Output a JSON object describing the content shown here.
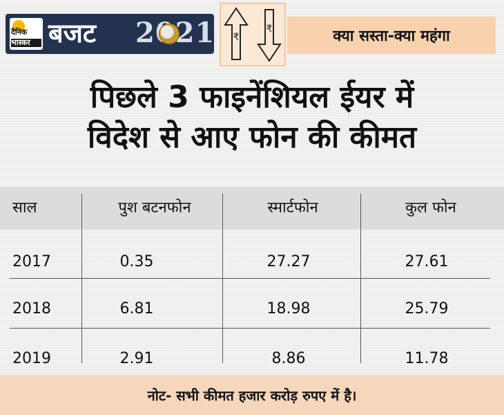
{
  "header": {
    "brand_logo_lines": [
      "दैनिक",
      "भास्कर"
    ],
    "budget_word": "बजट",
    "year": "2021",
    "tagline": "क्या सस्ता-क्या महंगा",
    "colors": {
      "badge": "#23334f",
      "tagline_bg": "#f8d2ad"
    }
  },
  "title": {
    "line1": "पिछले 3 फाइनेंशियल ईयर में",
    "line2": "विदेश से आए फोन की कीमत"
  },
  "chart_data": {
    "type": "table",
    "columns": [
      "साल",
      "पुश बटनफोन",
      "स्मार्टफोन",
      "कुल फोन"
    ],
    "rows": [
      [
        "2017",
        "0.35",
        "27.27",
        "27.61"
      ],
      [
        "2018",
        "6.81",
        "18.98",
        "25.79"
      ],
      [
        "2019",
        "2.91",
        "8.86",
        "11.78"
      ]
    ]
  },
  "footer": {
    "note": "नोट- सभी कीमत हजार करोड़ रुपए में है।"
  }
}
